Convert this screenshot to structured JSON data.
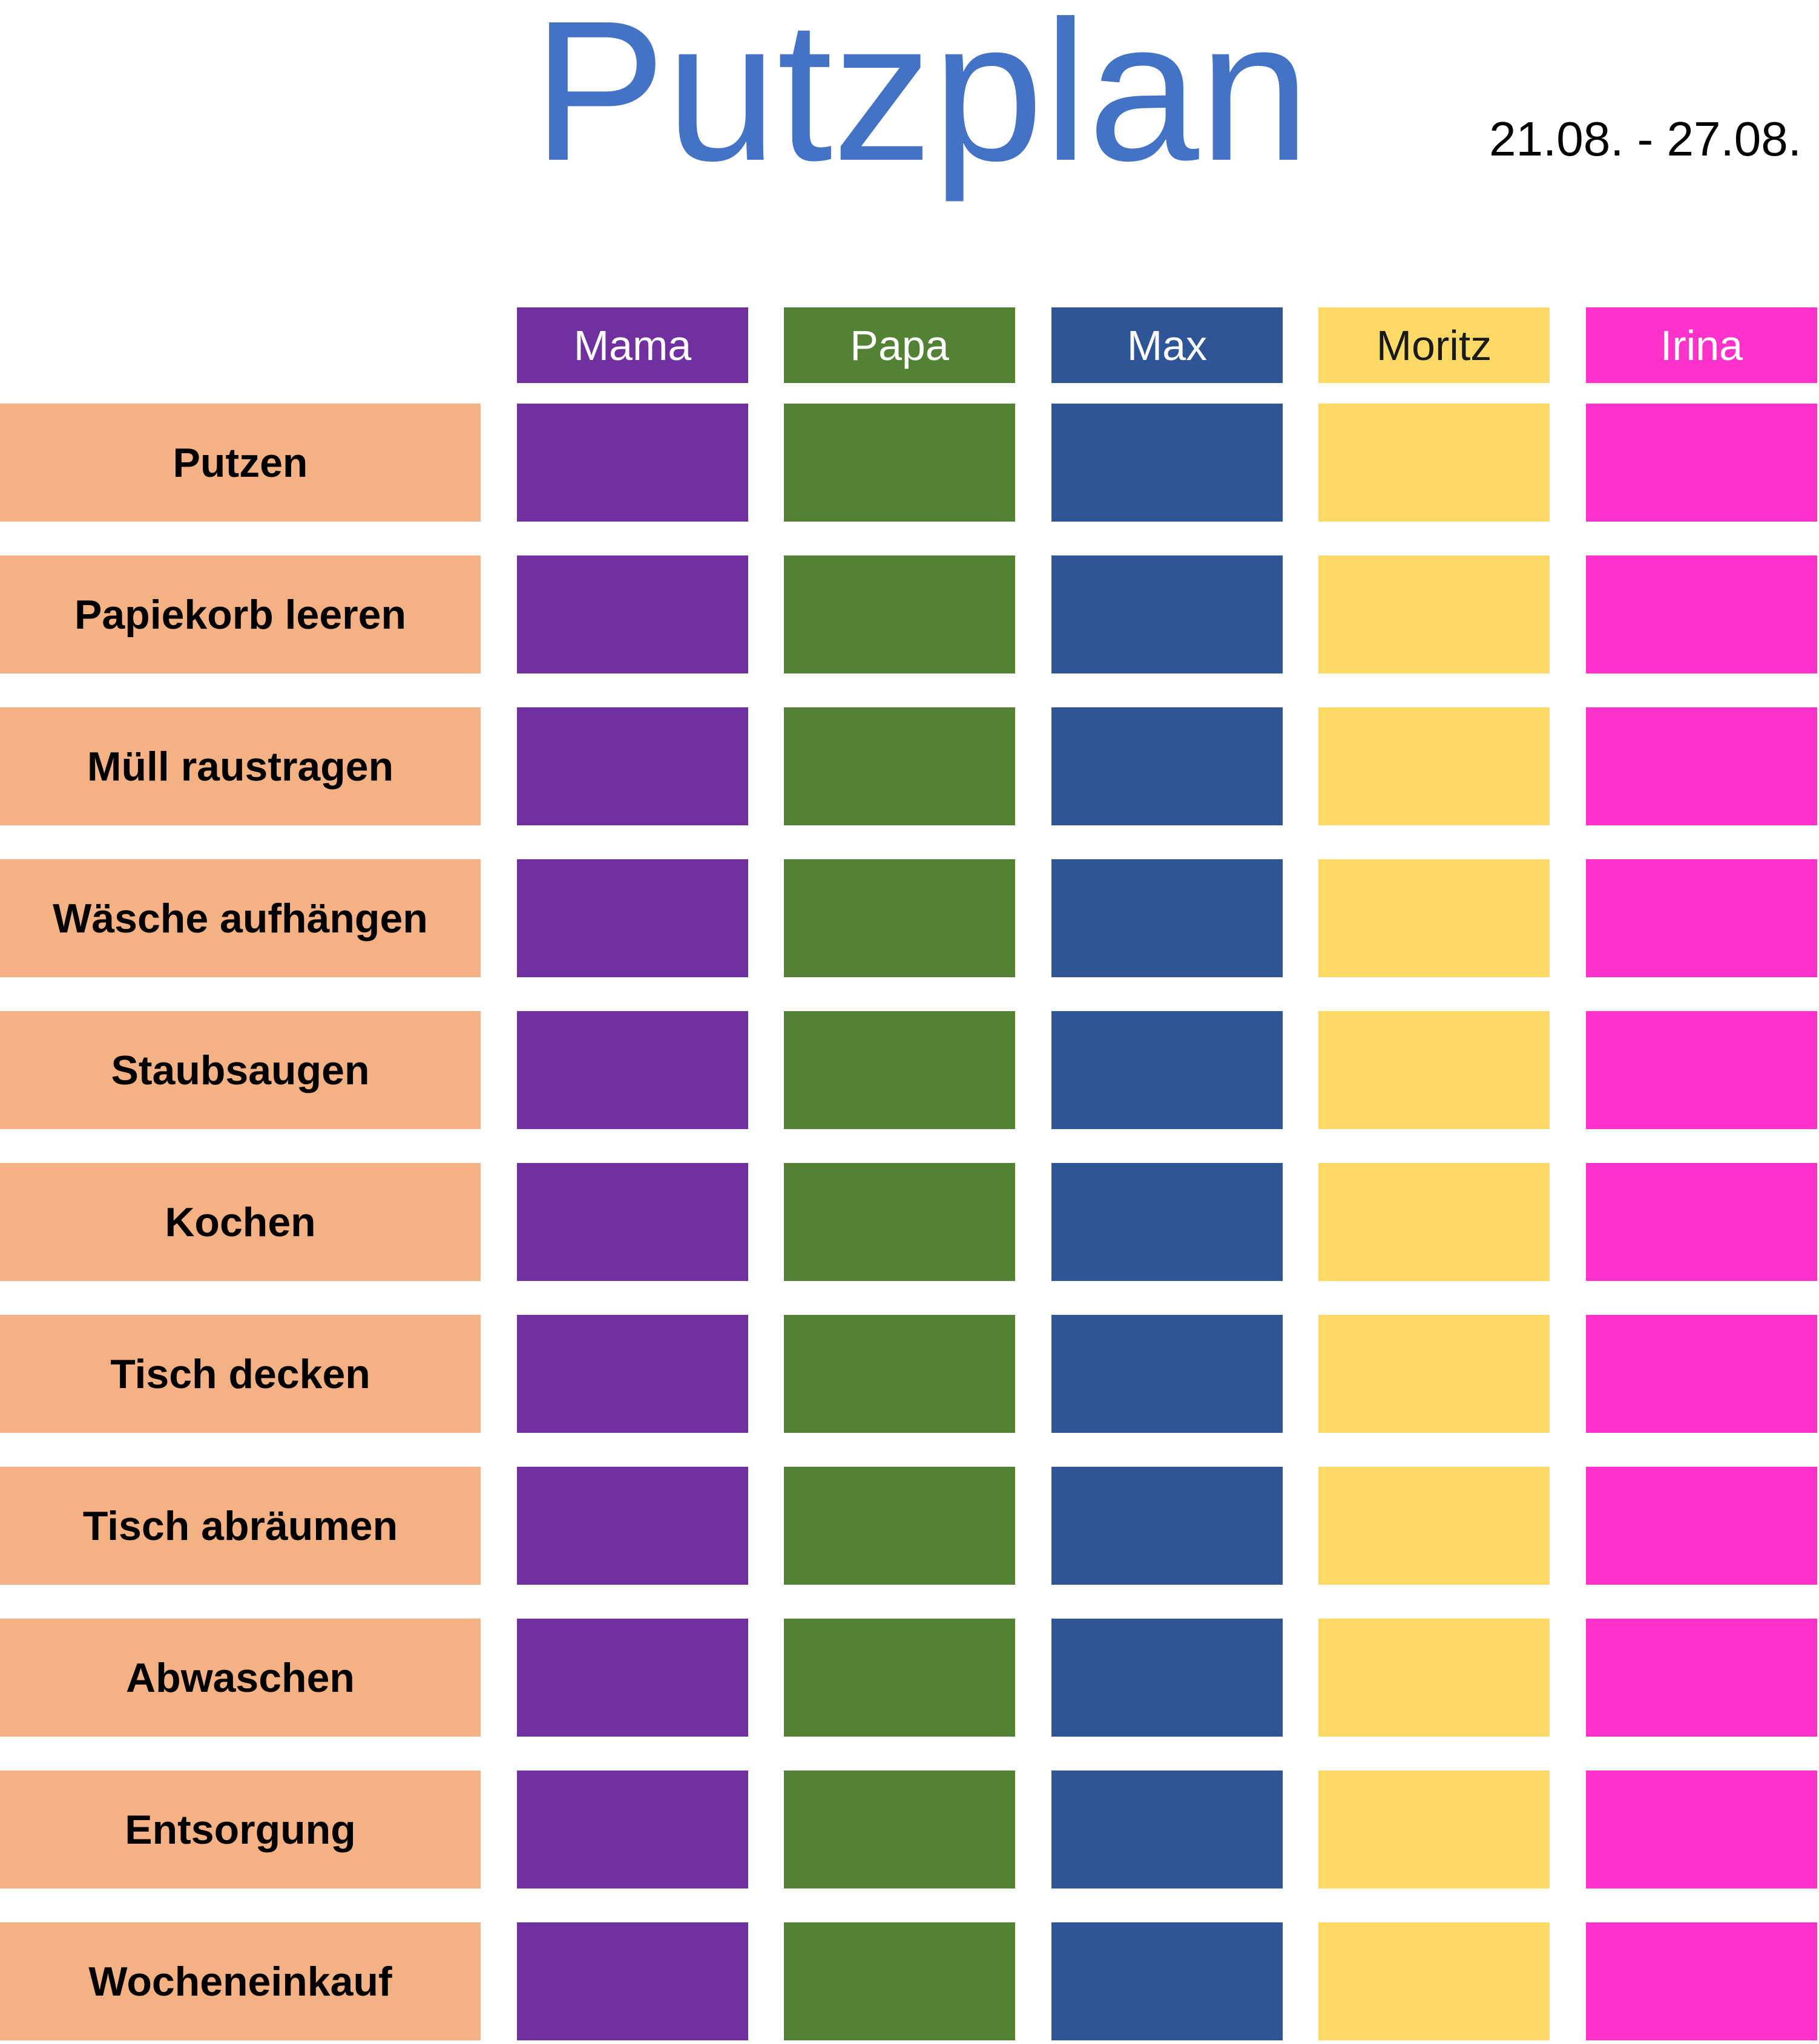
{
  "title": "Putzplan",
  "date_range": "21.08. - 27.08.",
  "people": [
    {
      "name": "Mama",
      "color": "#7030A0"
    },
    {
      "name": "Papa",
      "color": "#548235"
    },
    {
      "name": "Max",
      "color": "#2F5597"
    },
    {
      "name": "Moritz",
      "color": "#FFD966"
    },
    {
      "name": "Irina",
      "color": "#FF33CC"
    }
  ],
  "tasks": [
    "Putzen",
    "Papiekorb leeren",
    "Müll raustragen",
    "Wäsche aufhängen",
    "Staubsaugen",
    "Kochen",
    "Tisch decken",
    "Tisch abräumen",
    "Abwaschen",
    "Entsorgung",
    "Wocheneinkauf"
  ],
  "task_color": "#F4B183"
}
